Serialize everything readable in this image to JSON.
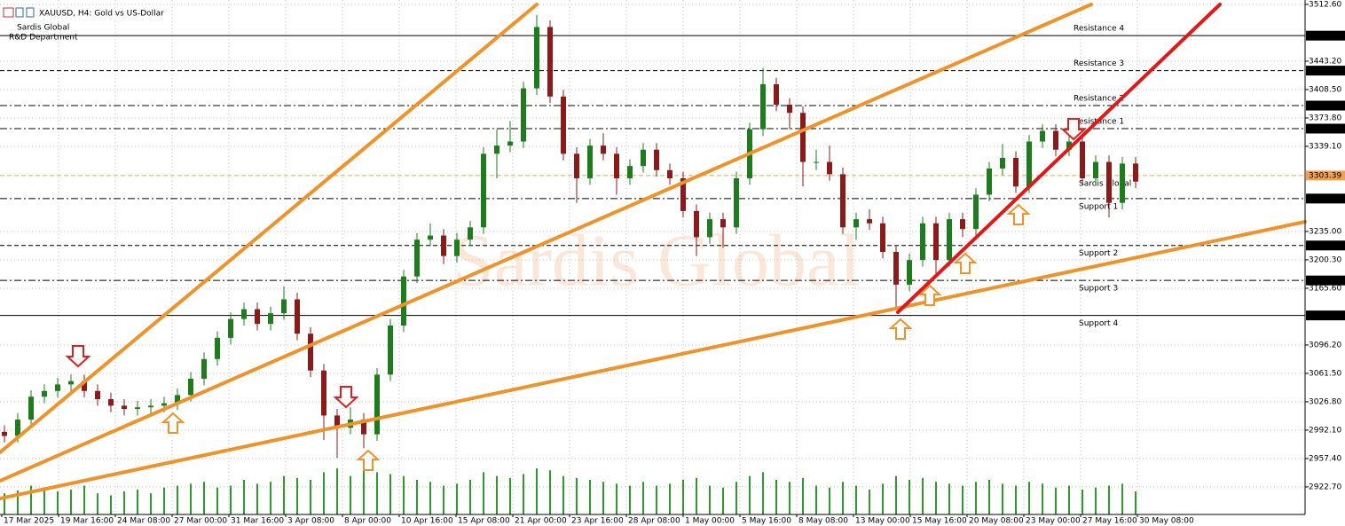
{
  "chart_data": {
    "type": "candlestick",
    "title": "XAUUSD, H4:  Gold vs US-Dollar",
    "subtitle_lines": [
      "Sardis Global",
      "R&D Department"
    ],
    "watermark": "Sardis Global",
    "ylim": [
      2889,
      3518
    ],
    "yticks": [
      {
        "value": 3512.6,
        "label": "3512.60"
      },
      {
        "value": 3443.2,
        "label": "3443.20"
      },
      {
        "value": 3408.5,
        "label": "3408.50"
      },
      {
        "value": 3373.8,
        "label": "3373.80"
      },
      {
        "value": 3339.1,
        "label": "3339.10"
      },
      {
        "value": 3235,
        "label": "3235.00"
      },
      {
        "value": 3200.3,
        "label": "3200.30"
      },
      {
        "value": 3165.6,
        "label": "3165.60"
      },
      {
        "value": 3096.2,
        "label": "3096.20"
      },
      {
        "value": 3061.5,
        "label": "3061.50"
      },
      {
        "value": 3026.8,
        "label": "3026.80"
      },
      {
        "value": 2992.1,
        "label": "2992.10"
      },
      {
        "value": 2957.4,
        "label": "2957.40"
      },
      {
        "value": 2922.7,
        "label": "2922.70"
      }
    ],
    "grid": true,
    "x_labels": [
      "17 Mar 2025",
      "19 Mar 16:00",
      "24 Mar 08:00",
      "27 Mar 00:00",
      "31 Mar 16:00",
      "3 Apr 08:00",
      "8 Apr 00:00",
      "10 Apr 16:00",
      "15 Apr 08:00",
      "21 Apr 00:00",
      "23 Apr 16:00",
      "28 Apr 08:00",
      "1 May 00:00",
      "5 May 16:00",
      "8 May 08:00",
      "13 May 00:00",
      "15 May 16:00",
      "20 May 08:00",
      "23 May 00:00",
      "27 May 16:00",
      "30 May 08:00"
    ],
    "bull_color": "#1e7b1e",
    "bear_color": "#8b1a1a",
    "volume_color": "#2e9a2e",
    "levels": [
      {
        "name": "Resistance 4",
        "value": 3474.43,
        "style": "solid",
        "color": "#000000"
      },
      {
        "name": "Resistance 3",
        "value": 3431.67,
        "style": "dash",
        "color": "#000000"
      },
      {
        "name": "Resistance 2",
        "value": 3388.91,
        "style": "dashdot",
        "color": "#000000"
      },
      {
        "name": "Resistance 1",
        "value": 3360.75,
        "style": "dashdot",
        "color": "#000000"
      },
      {
        "name": "Sardis Global",
        "value": 3303.39,
        "style": "dash",
        "color": "#f0a050"
      },
      {
        "name": "Support 1",
        "value": 3275.23,
        "style": "dashdot",
        "color": "#000000"
      },
      {
        "name": "Support 2",
        "value": 3217.87,
        "style": "dash",
        "color": "#000000"
      },
      {
        "name": "Support 3",
        "value": 3175.11,
        "style": "dashdot",
        "color": "#000000"
      },
      {
        "name": "Support 4",
        "value": 3132.35,
        "style": "solid",
        "color": "#000000"
      }
    ],
    "open": [
      2990,
      2985,
      3005,
      3033,
      3040,
      3048,
      3052,
      3040,
      3030,
      3022,
      3018,
      3020,
      3022,
      3025,
      3035,
      3055,
      3079,
      3105,
      3128,
      3140,
      3122,
      3135,
      3152,
      3110,
      3065,
      3010,
      2995,
      3005,
      2987,
      3060,
      3120,
      3180,
      3225,
      3230,
      3205,
      3225,
      3240,
      3330,
      3340,
      3345,
      3410,
      3485,
      3400,
      3330,
      3300,
      3340,
      3330,
      3300,
      3315,
      3335,
      3310,
      3300,
      3260,
      3228,
      3250,
      3240,
      3300,
      3360,
      3415,
      3390,
      3380,
      3320,
      3320,
      3305,
      3240,
      3250,
      3245,
      3210,
      3170,
      3200,
      3245,
      3200,
      3250,
      3238,
      3280,
      3312,
      3325,
      3290,
      3345,
      3358,
      3335,
      3345,
      3300,
      3320,
      3270,
      3318
    ],
    "high": [
      2998,
      3013,
      3041,
      3048,
      3056,
      3060,
      3060,
      3048,
      3038,
      3030,
      3028,
      3030,
      3033,
      3043,
      3063,
      3087,
      3113,
      3136,
      3148,
      3148,
      3143,
      3168,
      3160,
      3118,
      3073,
      3018,
      3020,
      3013,
      3068,
      3128,
      3188,
      3233,
      3245,
      3238,
      3233,
      3248,
      3338,
      3360,
      3370,
      3418,
      3500,
      3493,
      3408,
      3338,
      3348,
      3355,
      3338,
      3323,
      3343,
      3343,
      3318,
      3308,
      3268,
      3258,
      3258,
      3308,
      3368,
      3435,
      3423,
      3398,
      3388,
      3335,
      3340,
      3313,
      3258,
      3262,
      3253,
      3218,
      3208,
      3253,
      3253,
      3258,
      3258,
      3288,
      3320,
      3342,
      3333,
      3353,
      3366,
      3366,
      3353,
      3353,
      3328,
      3328,
      3326,
      3326
    ],
    "low": [
      2977,
      2977,
      2997,
      3025,
      3032,
      3040,
      3032,
      3022,
      3014,
      3010,
      3010,
      3012,
      3014,
      3017,
      3027,
      3047,
      3071,
      3097,
      3120,
      3114,
      3114,
      3127,
      3102,
      3057,
      2980,
      2958,
      2987,
      2970,
      2979,
      3052,
      3112,
      3172,
      3217,
      3195,
      3197,
      3217,
      3232,
      3300,
      3332,
      3337,
      3402,
      3392,
      3322,
      3270,
      3292,
      3322,
      3280,
      3292,
      3307,
      3302,
      3292,
      3252,
      3205,
      3220,
      3215,
      3232,
      3292,
      3352,
      3382,
      3360,
      3290,
      3310,
      3297,
      3232,
      3225,
      3237,
      3202,
      3140,
      3162,
      3192,
      3180,
      3192,
      3228,
      3230,
      3272,
      3304,
      3282,
      3282,
      3337,
      3327,
      3327,
      3292,
      3292,
      3252,
      3262,
      3288
    ],
    "close": [
      2985,
      3005,
      3033,
      3040,
      3048,
      3052,
      3040,
      3030,
      3022,
      3018,
      3020,
      3022,
      3025,
      3035,
      3055,
      3079,
      3105,
      3128,
      3140,
      3122,
      3135,
      3152,
      3110,
      3065,
      3010,
      2995,
      3005,
      2987,
      3060,
      3120,
      3180,
      3225,
      3230,
      3205,
      3225,
      3240,
      3330,
      3340,
      3345,
      3410,
      3485,
      3400,
      3330,
      3300,
      3340,
      3330,
      3300,
      3315,
      3335,
      3310,
      3300,
      3260,
      3228,
      3250,
      3240,
      3300,
      3360,
      3415,
      3390,
      3380,
      3320,
      3320,
      3305,
      3240,
      3250,
      3245,
      3210,
      3170,
      3200,
      3245,
      3200,
      3250,
      3238,
      3280,
      3312,
      3325,
      3290,
      3345,
      3358,
      3335,
      3345,
      3300,
      3320,
      3270,
      3318,
      3296
    ],
    "volume": [
      22,
      25,
      30,
      28,
      24,
      26,
      30,
      22,
      20,
      24,
      26,
      22,
      28,
      30,
      32,
      34,
      28,
      30,
      36,
      32,
      34,
      40,
      38,
      36,
      44,
      48,
      40,
      46,
      44,
      42,
      40,
      36,
      34,
      30,
      32,
      36,
      44,
      40,
      38,
      42,
      48,
      46,
      40,
      38,
      36,
      34,
      32,
      30,
      34,
      30,
      32,
      36,
      38,
      30,
      28,
      34,
      40,
      44,
      36,
      34,
      38,
      30,
      28,
      34,
      30,
      26,
      32,
      40,
      36,
      38,
      34,
      32,
      30,
      34,
      36,
      32,
      30,
      34,
      32,
      28,
      30,
      26,
      28,
      30,
      32,
      24
    ]
  }
}
